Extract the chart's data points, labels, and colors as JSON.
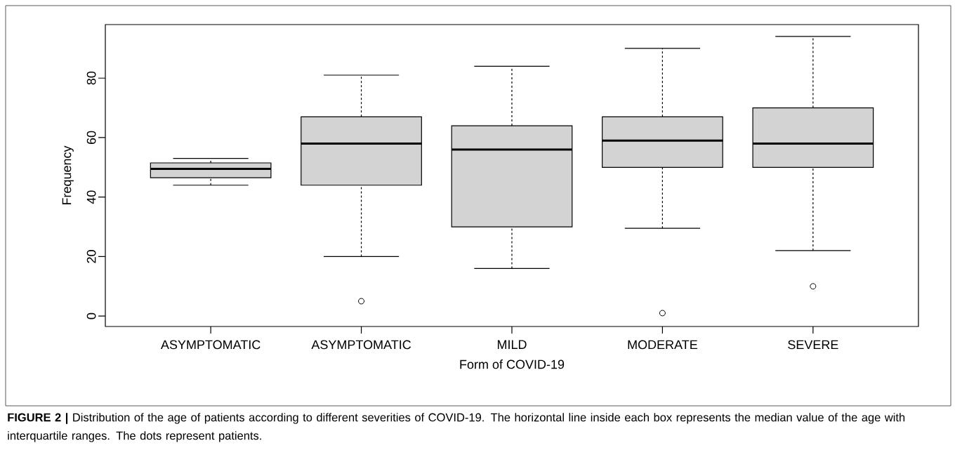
{
  "chart_data": {
    "type": "box",
    "xlabel": "Form of COVID-19",
    "ylabel": "Frequency",
    "categories": [
      "ASYMPTOMATIC",
      "ASYMPTOMATIC",
      "MILD",
      "MODERATE",
      "SEVERE"
    ],
    "ylim": [
      -3.5,
      98
    ],
    "yticks": [
      0,
      20,
      40,
      60,
      80
    ],
    "marker": "circle",
    "series": [
      {
        "color": "#d3d3d3",
        "boxes": [
          {
            "low": 44,
            "q1": 46.5,
            "median": 49.5,
            "q3": 51.5,
            "high": 53
          },
          {
            "low": 20,
            "q1": 44,
            "median": 58,
            "q3": 67,
            "high": 81,
            "outliers": [
              5
            ]
          },
          {
            "low": 16,
            "q1": 30,
            "median": 56,
            "q3": 64,
            "high": 84
          },
          {
            "low": 29.5,
            "q1": 50,
            "median": 59,
            "q3": 67,
            "high": 90,
            "outliers": [
              1
            ]
          },
          {
            "low": 22,
            "q1": 50,
            "median": 58,
            "q3": 70,
            "high": 94,
            "outliers": [
              10
            ]
          }
        ]
      }
    ],
    "annotations": [
      "**FIGURE 2 |** Distribution of the age of patients according to different severities of COVID-19. The horizontal line inside each box represents the median value of the age with interquartile ranges. The dots represent patients."
    ]
  }
}
